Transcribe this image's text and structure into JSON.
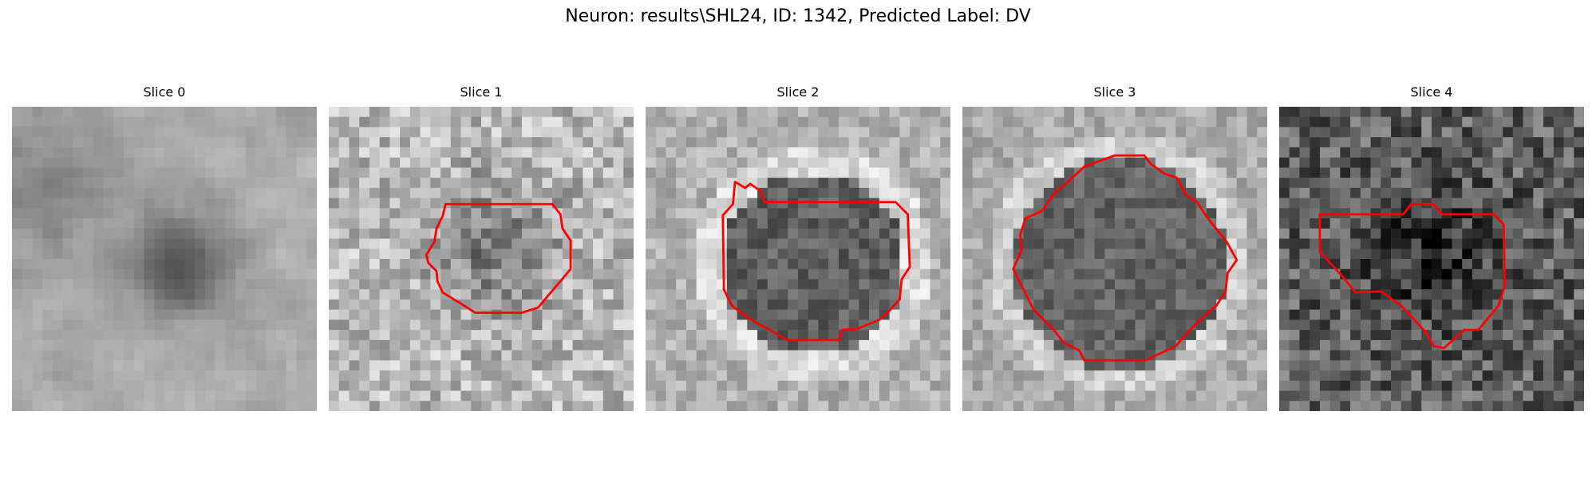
{
  "figure": {
    "title": "Neuron: results\\SHL24, ID: 1342, Predicted Label: DV"
  },
  "panels": [
    {
      "title": "Slice 0",
      "style": "blurred grayscale with dark central blob",
      "has_contour": false
    },
    {
      "title": "Slice 1",
      "style": "noisy light grayscale with darker center",
      "has_contour": true
    },
    {
      "title": "Slice 2",
      "style": "dark gray nucleus surrounded by bright rim",
      "has_contour": true
    },
    {
      "title": "Slice 3",
      "style": "large dark gray round region with light border",
      "has_contour": true
    },
    {
      "title": "Slice 4",
      "style": "dark noisy texture with darker center",
      "has_contour": true
    }
  ],
  "colors": {
    "contour": "#ff0000",
    "background": "#ffffff"
  }
}
